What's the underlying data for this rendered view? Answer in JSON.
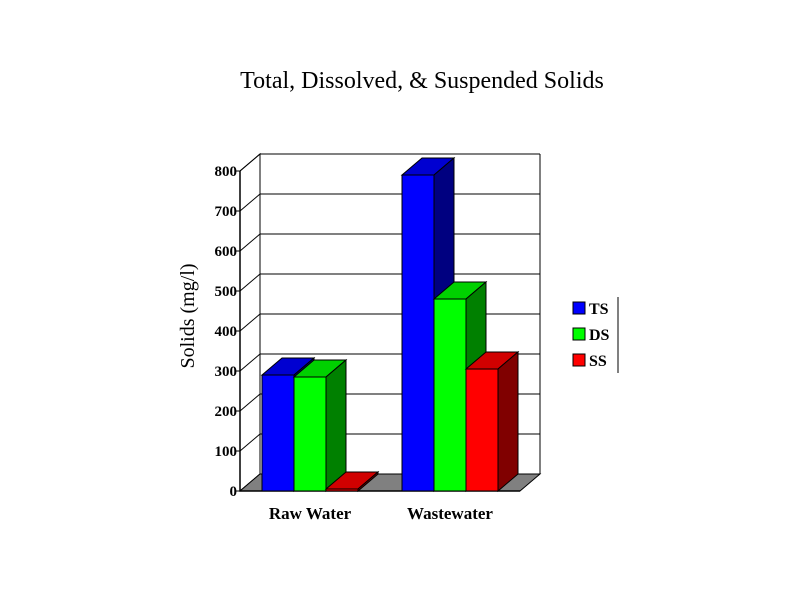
{
  "chart_data": {
    "type": "bar",
    "title": "Total, Dissolved, & Suspended Solids",
    "ylabel": "Solids (mg/l)",
    "xlabel": "",
    "categories": [
      "Raw Water",
      "Wastewater"
    ],
    "series": [
      {
        "name": "TS",
        "values": [
          290,
          790
        ],
        "color": "#0000ff"
      },
      {
        "name": "DS",
        "values": [
          285,
          480
        ],
        "color": "#00ff00"
      },
      {
        "name": "SS",
        "values": [
          5,
          305
        ],
        "color": "#ff0000"
      }
    ],
    "ylim": [
      0,
      800
    ],
    "yticks": [
      0,
      100,
      200,
      300,
      400,
      500,
      600,
      700,
      800
    ],
    "grid": true,
    "legend_position": "right",
    "floor_color": "#808080"
  }
}
